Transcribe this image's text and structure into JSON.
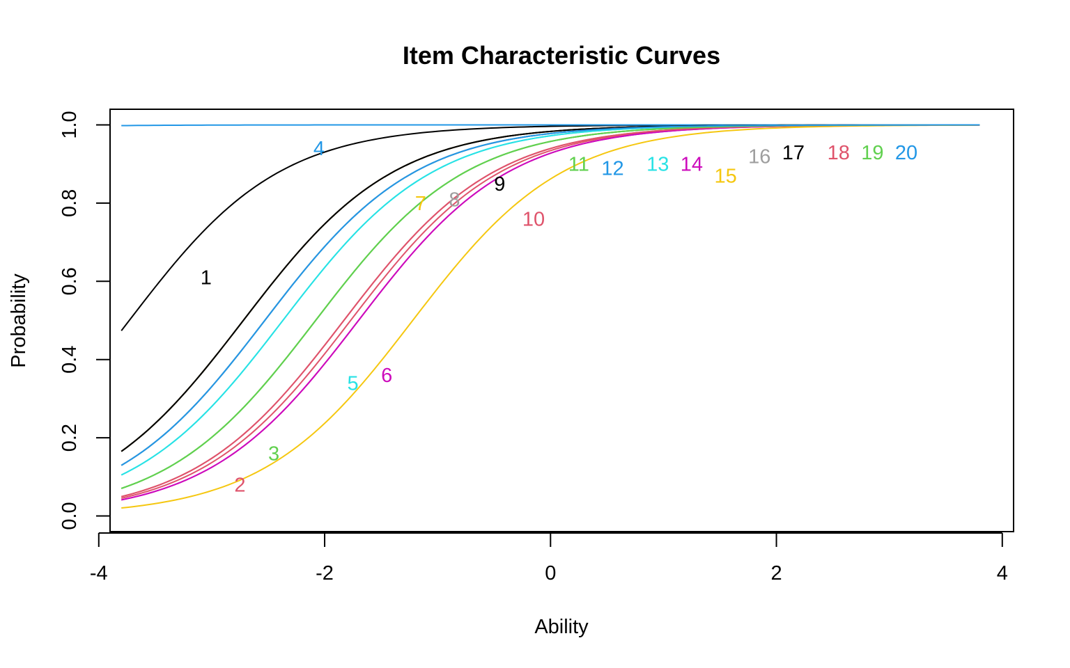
{
  "chart_data": {
    "type": "line",
    "title": "Item Characteristic Curves",
    "xlabel": "Ability",
    "ylabel": "Probability",
    "xlim": [
      -3.9,
      4.1
    ],
    "ylim": [
      -0.04,
      1.04
    ],
    "x_range": [
      -3.8,
      3.8
    ],
    "xticks": [
      "-4",
      "-2",
      "0",
      "2",
      "4"
    ],
    "xtick_values": [
      -4,
      -2,
      0,
      2,
      4
    ],
    "yticks": [
      "0.0",
      "0.2",
      "0.4",
      "0.6",
      "0.8",
      "1.0"
    ],
    "ytick_values": [
      0,
      0.2,
      0.4,
      0.6,
      0.8,
      1.0
    ],
    "grid": false,
    "legend": "none",
    "series": [
      {
        "name": "1",
        "color": "#000000",
        "a": 1.5,
        "b": -3.73,
        "label_at": [
          -3.05,
          0.61
        ]
      },
      {
        "name": "2",
        "color": "#DF536B",
        "a": 1.5,
        "b": -1.77,
        "label_at": [
          -2.75,
          0.08
        ]
      },
      {
        "name": "3",
        "color": "#61D04F",
        "a": 1.5,
        "b": -2.08,
        "label_at": [
          -2.45,
          0.16
        ]
      },
      {
        "name": "4",
        "color": "#2297E6",
        "a": 1.5,
        "b": -8.0,
        "label_at": [
          -2.05,
          0.94
        ]
      },
      {
        "name": "5",
        "color": "#28E2E5",
        "a": 1.5,
        "b": -2.37,
        "label_at": [
          -1.75,
          0.34
        ]
      },
      {
        "name": "6",
        "color": "#CD0BBC",
        "a": 1.5,
        "b": -1.7,
        "label_at": [
          -1.45,
          0.36
        ]
      },
      {
        "name": "7",
        "color": "#F5C710",
        "a": 1.5,
        "b": -2.72,
        "label_at": [
          -1.15,
          0.8
        ]
      },
      {
        "name": "8",
        "color": "#9E9E9E",
        "a": 1.5,
        "b": -2.53,
        "label_at": [
          -0.85,
          0.81
        ]
      },
      {
        "name": "9",
        "color": "#000000",
        "a": 1.5,
        "b": -2.72,
        "label_at": [
          -0.45,
          0.85
        ]
      },
      {
        "name": "10",
        "color": "#DF536B",
        "a": 1.5,
        "b": -1.83,
        "label_at": [
          -0.15,
          0.76
        ]
      },
      {
        "name": "11",
        "color": "#61D04F",
        "a": 1.5,
        "b": -2.08,
        "label_at": [
          0.25,
          0.9
        ]
      },
      {
        "name": "12",
        "color": "#2297E6",
        "a": 1.5,
        "b": -2.53,
        "label_at": [
          0.55,
          0.89
        ]
      },
      {
        "name": "13",
        "color": "#28E2E5",
        "a": 1.5,
        "b": -2.37,
        "label_at": [
          0.95,
          0.9
        ]
      },
      {
        "name": "14",
        "color": "#CD0BBC",
        "a": 1.5,
        "b": -1.7,
        "label_at": [
          1.25,
          0.9
        ]
      },
      {
        "name": "15",
        "color": "#F5C710",
        "a": 1.5,
        "b": -1.22,
        "label_at": [
          1.55,
          0.87
        ]
      },
      {
        "name": "16",
        "color": "#9E9E9E",
        "a": 1.5,
        "b": -2.53,
        "label_at": [
          1.85,
          0.92
        ]
      },
      {
        "name": "17",
        "color": "#000000",
        "a": 1.5,
        "b": -2.72,
        "label_at": [
          2.15,
          0.93
        ]
      },
      {
        "name": "18",
        "color": "#DF536B",
        "a": 1.5,
        "b": -1.83,
        "label_at": [
          2.55,
          0.93
        ]
      },
      {
        "name": "19",
        "color": "#61D04F",
        "a": 1.5,
        "b": -2.08,
        "label_at": [
          2.85,
          0.93
        ]
      },
      {
        "name": "20",
        "color": "#2297E6",
        "a": 1.5,
        "b": -2.53,
        "label_at": [
          3.15,
          0.93
        ]
      }
    ]
  }
}
